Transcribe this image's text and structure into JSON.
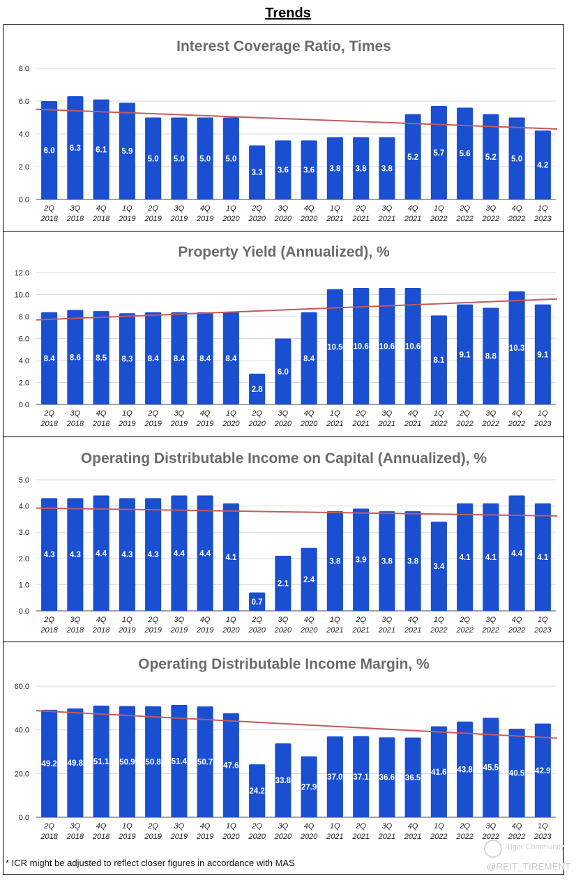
{
  "page_title": "Trends",
  "footnote": "* ICR might be adjusted to reflect closer figures in accordance with MAS",
  "watermark": {
    "community": "Tiger Community",
    "handle": "@REIT_TIREMENT"
  },
  "colors": {
    "bar": "#1a4fd1",
    "trend": "#c45a5a",
    "grid": "#d9d9d9",
    "title": "#6b6b6b"
  },
  "categories": [
    [
      "2Q",
      "2018"
    ],
    [
      "3Q",
      "2018"
    ],
    [
      "4Q",
      "2018"
    ],
    [
      "1Q",
      "2019"
    ],
    [
      "2Q",
      "2019"
    ],
    [
      "3Q",
      "2019"
    ],
    [
      "4Q",
      "2019"
    ],
    [
      "1Q",
      "2020"
    ],
    [
      "2Q",
      "2020"
    ],
    [
      "3Q",
      "2020"
    ],
    [
      "4Q",
      "2020"
    ],
    [
      "1Q",
      "2021"
    ],
    [
      "2Q",
      "2021"
    ],
    [
      "3Q",
      "2021"
    ],
    [
      "4Q",
      "2021"
    ],
    [
      "1Q",
      "2022"
    ],
    [
      "2Q",
      "2022"
    ],
    [
      "3Q",
      "2022"
    ],
    [
      "4Q",
      "2022"
    ],
    [
      "1Q",
      "2023"
    ]
  ],
  "chart_data": [
    {
      "type": "bar",
      "title": "Interest Coverage Ratio, Times",
      "values": [
        6.0,
        6.3,
        6.1,
        5.9,
        5.0,
        5.0,
        5.0,
        5.0,
        3.3,
        3.6,
        3.6,
        3.8,
        3.8,
        3.8,
        5.2,
        5.7,
        5.6,
        5.2,
        5.0,
        4.2
      ],
      "ylim": [
        0,
        8
      ],
      "yticks": [
        "0.0",
        "2.0",
        "4.0",
        "6.0",
        "8.0"
      ],
      "trendline": [
        5.5,
        4.3
      ]
    },
    {
      "type": "bar",
      "title": "Property Yield (Annualized), %",
      "values": [
        8.4,
        8.6,
        8.5,
        8.3,
        8.4,
        8.4,
        8.4,
        8.4,
        2.8,
        6.0,
        8.4,
        10.5,
        10.6,
        10.6,
        10.6,
        8.1,
        9.1,
        8.8,
        10.3,
        9.1
      ],
      "ylim": [
        0,
        12
      ],
      "yticks": [
        "0.0",
        "2.0",
        "4.0",
        "6.0",
        "8.0",
        "10.0",
        "12.0"
      ],
      "trendline": [
        7.7,
        9.6
      ]
    },
    {
      "type": "bar",
      "title": "Operating Distributable Income on Capital (Annualized), %",
      "values": [
        4.3,
        4.3,
        4.4,
        4.3,
        4.3,
        4.4,
        4.4,
        4.1,
        0.7,
        2.1,
        2.4,
        3.8,
        3.9,
        3.8,
        3.8,
        3.4,
        4.1,
        4.1,
        4.4,
        4.1
      ],
      "ylim": [
        0,
        5
      ],
      "yticks": [
        "0.0",
        "1.0",
        "2.0",
        "3.0",
        "4.0",
        "5.0"
      ],
      "trendline": [
        3.92,
        3.62
      ]
    },
    {
      "type": "bar",
      "title": "Operating Distributable Income Margin, %",
      "values": [
        49.2,
        49.8,
        51.1,
        50.9,
        50.8,
        51.4,
        50.7,
        47.6,
        24.2,
        33.8,
        27.9,
        37.0,
        37.1,
        36.6,
        36.5,
        41.6,
        43.8,
        45.5,
        40.5,
        42.9
      ],
      "ylim": [
        0,
        60
      ],
      "yticks": [
        "0.0",
        "20.0",
        "40.0",
        "60.0"
      ],
      "trendline": [
        48.8,
        36.2
      ]
    }
  ]
}
